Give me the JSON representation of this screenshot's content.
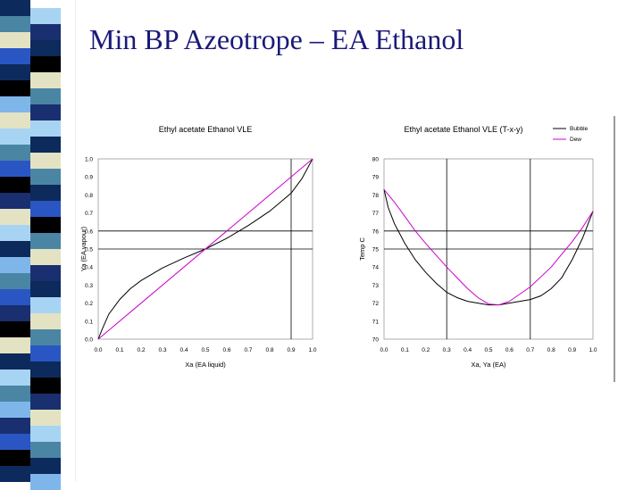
{
  "slide": {
    "title": "Min BP Azeotrope – EA Ethanol",
    "stripe_colors": [
      "#0d2a5c",
      "#4a86a4",
      "#e3e3c3",
      "#2a56c4",
      "#7fb6ea",
      "#000000",
      "#a8d4f4",
      "#1a2f70"
    ]
  },
  "chart_data": [
    {
      "type": "line",
      "title": "Ethyl acetate Ethanol VLE",
      "xlabel": "Xa (EA liquid)",
      "ylabel": "Ya (EA vapour)",
      "xlim": [
        0,
        1
      ],
      "ylim": [
        0,
        1
      ],
      "xticks": [
        "0.0",
        "0.1",
        "0.2",
        "0.3",
        "0.4",
        "0.5",
        "0.6",
        "0.7",
        "0.8",
        "0.9",
        "1.0"
      ],
      "yticks": [
        "0.0",
        "0.1",
        "0.2",
        "0.3",
        "0.4",
        "0.5",
        "0.6",
        "0.7",
        "0.8",
        "0.9",
        "1.0"
      ],
      "reference_lines": {
        "x": [
          0.9
        ],
        "y": [
          0.5,
          0.6
        ]
      },
      "series": [
        {
          "color": "#000000",
          "x": [
            0,
            0.02,
            0.05,
            0.1,
            0.15,
            0.2,
            0.3,
            0.4,
            0.5,
            0.6,
            0.7,
            0.8,
            0.9,
            0.95,
            1.0
          ],
          "y": [
            0,
            0.06,
            0.14,
            0.22,
            0.28,
            0.325,
            0.395,
            0.45,
            0.5,
            0.56,
            0.63,
            0.71,
            0.81,
            0.89,
            1.0
          ]
        },
        {
          "color": "#cc00cc",
          "x": [
            0,
            1
          ],
          "y": [
            0,
            1
          ]
        }
      ]
    },
    {
      "type": "line",
      "title": "Ethyl acetate Ethanol VLE (T-x-y)",
      "xlabel": "Xa, Ya (EA)",
      "ylabel": "Temp C",
      "xlim": [
        0,
        1
      ],
      "ylim": [
        70,
        80
      ],
      "xticks": [
        "0.0",
        "0.1",
        "0.2",
        "0.3",
        "0.4",
        "0.5",
        "0.6",
        "0.7",
        "0.8",
        "0.9",
        "1.0"
      ],
      "yticks": [
        "70",
        "71",
        "72",
        "73",
        "74",
        "75",
        "76",
        "77",
        "78",
        "79",
        "80"
      ],
      "reference_lines": {
        "x": [
          0.3,
          0.7
        ],
        "y": [
          75,
          76
        ]
      },
      "legend": {
        "placement": "top-right",
        "entries": [
          "Bubble",
          "Dew"
        ]
      },
      "series": [
        {
          "name": "Bubble",
          "color": "#000000",
          "x": [
            0,
            0.02,
            0.05,
            0.1,
            0.15,
            0.2,
            0.25,
            0.3,
            0.35,
            0.4,
            0.45,
            0.5,
            0.55,
            0.6,
            0.65,
            0.7,
            0.75,
            0.8,
            0.85,
            0.9,
            0.95,
            1.0
          ],
          "y": [
            78.3,
            77.3,
            76.4,
            75.3,
            74.4,
            73.7,
            73.1,
            72.6,
            72.3,
            72.1,
            72.0,
            71.9,
            71.9,
            72.0,
            72.1,
            72.2,
            72.4,
            72.8,
            73.4,
            74.4,
            75.6,
            77.1
          ]
        },
        {
          "name": "Dew",
          "color": "#cc00cc",
          "x": [
            0,
            0.05,
            0.1,
            0.15,
            0.2,
            0.3,
            0.4,
            0.45,
            0.5,
            0.55,
            0.6,
            0.7,
            0.8,
            0.9,
            0.95,
            1.0
          ],
          "y": [
            78.3,
            77.6,
            76.8,
            76.0,
            75.3,
            74.0,
            72.8,
            72.3,
            71.95,
            71.9,
            72.1,
            72.9,
            74.0,
            75.4,
            76.2,
            77.1
          ]
        }
      ]
    }
  ]
}
